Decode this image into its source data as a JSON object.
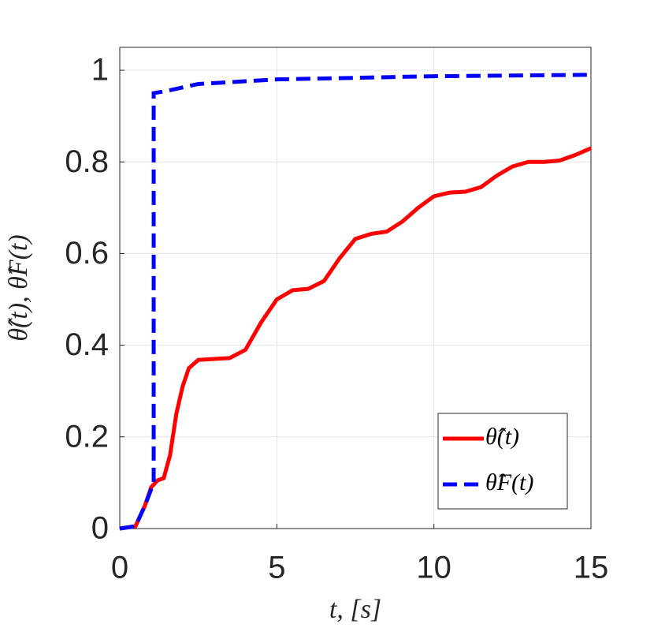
{
  "chart_data": {
    "type": "line",
    "xlabel": "t, [s]",
    "ylabel": "θ̂(t), θ̂F(t)",
    "xlim": [
      0,
      15
    ],
    "xticks": [
      0,
      5,
      10,
      15
    ],
    "ylim": [
      0,
      1.05
    ],
    "yticks": [
      0,
      0.2,
      0.4,
      0.6,
      0.8,
      1
    ],
    "grid": true,
    "legend": "lower right",
    "series": [
      {
        "name": "θ̂(t)",
        "color": "#ff0000",
        "dash": false,
        "x": [
          0,
          0.5,
          0.8,
          1.0,
          1.2,
          1.4,
          1.6,
          1.8,
          2.0,
          2.2,
          2.5,
          3,
          3.5,
          4,
          4.5,
          5,
          5.5,
          6,
          6.5,
          7,
          7.5,
          8,
          8.5,
          9,
          9.5,
          10,
          10.5,
          11,
          11.5,
          12,
          12.5,
          13,
          13.5,
          14,
          14.5,
          15
        ],
        "values": [
          0,
          0.005,
          0.05,
          0.09,
          0.105,
          0.11,
          0.16,
          0.25,
          0.31,
          0.35,
          0.368,
          0.37,
          0.372,
          0.39,
          0.45,
          0.5,
          0.52,
          0.523,
          0.54,
          0.59,
          0.632,
          0.643,
          0.648,
          0.67,
          0.7,
          0.725,
          0.733,
          0.735,
          0.745,
          0.77,
          0.79,
          0.8,
          0.8,
          0.803,
          0.815,
          0.83
        ]
      },
      {
        "name": "θ̂F(t)",
        "color": "#0000ff",
        "dash": true,
        "x": [
          0,
          0.5,
          0.8,
          1.08,
          1.08,
          1.5,
          2.5,
          5,
          10,
          15
        ],
        "values": [
          0,
          0.005,
          0.05,
          0.1,
          0.95,
          0.955,
          0.97,
          0.98,
          0.987,
          0.99
        ]
      }
    ]
  }
}
